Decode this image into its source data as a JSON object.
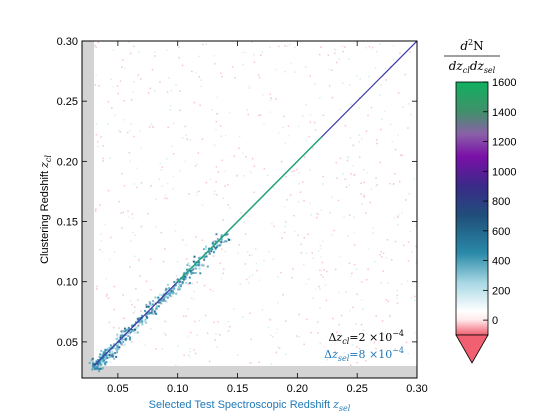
{
  "chart_data": {
    "type": "heatmap",
    "x_range": [
      0.02,
      0.3
    ],
    "y_range": [
      0.02,
      0.3
    ],
    "x_ticks": [
      "0.05",
      "0.10",
      "0.15",
      "0.20",
      "0.25",
      "0.30"
    ],
    "x_tick_values": [
      0.05,
      0.1,
      0.15,
      0.2,
      0.25,
      0.3
    ],
    "y_ticks": [
      "0.05",
      "0.10",
      "0.15",
      "0.20",
      "0.25",
      "0.30"
    ],
    "y_tick_values": [
      0.05,
      0.1,
      0.15,
      0.2,
      0.25,
      0.3
    ],
    "xlabel_text": "Selected Test Spectroscopic Redshift ",
    "xlabel_var": "z",
    "xlabel_sub": "sel",
    "ylabel_text": "Clustering Redshift ",
    "ylabel_var": "z",
    "ylabel_sub": "cl",
    "masked_region_x_max": 0.03,
    "masked_region_y_max": 0.03,
    "diagonal": {
      "x": [
        0.03,
        0.3
      ],
      "y": [
        0.03,
        0.3
      ]
    },
    "annotations": [
      {
        "name": "delta-zcl",
        "prefix": "Δ",
        "var": "z",
        "sub": "cl",
        "value": "=2 ×10",
        "exp": "−4",
        "color": "#000000"
      },
      {
        "name": "delta-zsel",
        "prefix": "Δ",
        "var": "z",
        "sub": "sel",
        "value": "=8 ×10",
        "exp": "−4",
        "color": "#1f7ab8"
      }
    ],
    "colorbar": {
      "title_numerator": "d",
      "title_numerator_exp": "2",
      "title_numerator_var": "N",
      "title_denominator": "dz",
      "title_denominator_sub1": "cl",
      "title_denominator_mid": "dz",
      "title_denominator_sub2": "sel",
      "range": [
        -100,
        1600
      ],
      "ticks": [
        "1600",
        "1400",
        "1200",
        "1000",
        "800",
        "600",
        "400",
        "200",
        "0"
      ],
      "tick_values": [
        1600,
        1400,
        1200,
        1000,
        800,
        600,
        400,
        200,
        0
      ],
      "extend": "min",
      "stops": [
        {
          "value": -100,
          "color": "#f06070"
        },
        {
          "value": 0,
          "color": "#ffe8ea"
        },
        {
          "value": 60,
          "color": "#ffffff"
        },
        {
          "value": 250,
          "color": "#a8d8e4"
        },
        {
          "value": 450,
          "color": "#2a8aa8"
        },
        {
          "value": 700,
          "color": "#1f4f7a"
        },
        {
          "value": 900,
          "color": "#3a2a88"
        },
        {
          "value": 1100,
          "color": "#7a10a8"
        },
        {
          "value": 1250,
          "color": "#8a60a8"
        },
        {
          "value": 1400,
          "color": "#40906a"
        },
        {
          "value": 1600,
          "color": "#10b060"
        }
      ]
    }
  }
}
